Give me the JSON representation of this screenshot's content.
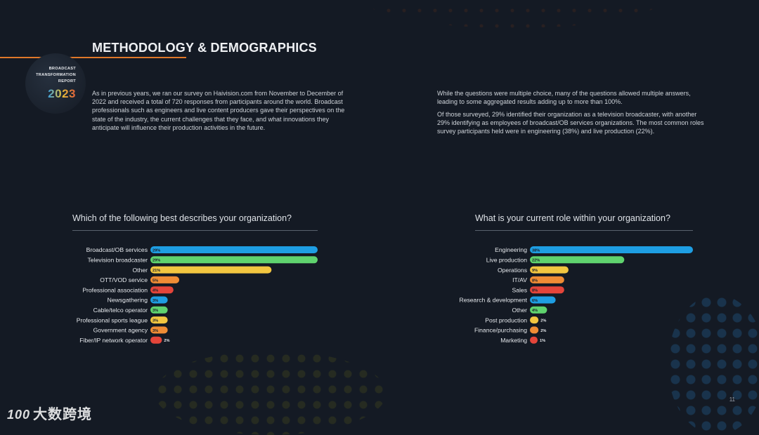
{
  "header": {
    "title": "METHODOLOGY & DEMOGRAPHICS",
    "badge_lines": [
      "BROADCAST",
      "TRANSFORMATION",
      "REPORT"
    ],
    "badge_year": "2023"
  },
  "body": {
    "left_paragraph": "As in previous years, we ran our survey on Haivision.com from November to December of 2022 and received a total of 720 responses from participants around the world. Broadcast professionals such as engineers and live content producers gave their perspectives on the state of the industry, the current challenges that they face, and what innovations they anticipate will influence their production activities in the future.",
    "right_paragraph_1": "While the questions were multiple choice, many of the questions allowed multiple answers, leading to some aggregated results adding up to more than 100%.",
    "right_paragraph_2": "Of those surveyed, 29% identified their organization as a television broadcaster, with another 29% identifying as employees of broadcast/OB services organizations. The most common roles survey participants held were in engineering (38%) and live production (22%)."
  },
  "page_number": "11",
  "watermark": {
    "logo": "100",
    "text": "大数跨境"
  },
  "chart_data": [
    {
      "type": "bar",
      "orientation": "horizontal",
      "title": "Which of the following best describes your organization?",
      "categories": [
        "Broadcast/OB services",
        "Television broadcaster",
        "Other",
        "OTT/VOD service",
        "Professional association",
        "Newsgathering",
        "Cable/telco operator",
        "Professional sports league",
        "Government agency",
        "Fiber/IP network operator"
      ],
      "values": [
        29,
        29,
        21,
        5,
        4,
        3,
        3,
        3,
        3,
        2
      ],
      "value_labels": [
        "29%",
        "29%",
        "21%",
        "5%",
        "4%",
        "3%",
        "3%",
        "3%",
        "3%",
        "2%"
      ],
      "colors": [
        "#1e9ee3",
        "#5fd36e",
        "#f2c640",
        "#ef8c35",
        "#e4453a",
        "#1e9ee3",
        "#5fd36e",
        "#f2c640",
        "#ef8c35",
        "#e4453a"
      ]
    },
    {
      "type": "bar",
      "orientation": "horizontal",
      "title": "What is your current role within your organization?",
      "categories": [
        "Engineering",
        "Live production",
        "Operations",
        "IT/AV",
        "Sales",
        "Research & development",
        "Other",
        "Post production",
        "Finance/purchasing",
        "Marketing"
      ],
      "values": [
        38,
        22,
        9,
        8,
        8,
        6,
        4,
        2,
        2,
        1
      ],
      "value_labels": [
        "38%",
        "22%",
        "9%",
        "8%",
        "8%",
        "6%",
        "4%",
        "2%",
        "2%",
        "1%"
      ],
      "colors": [
        "#1e9ee3",
        "#5fd36e",
        "#f2c640",
        "#ef8c35",
        "#e4453a",
        "#1e9ee3",
        "#5fd36e",
        "#f2c640",
        "#ef8c35",
        "#e4453a"
      ]
    }
  ]
}
